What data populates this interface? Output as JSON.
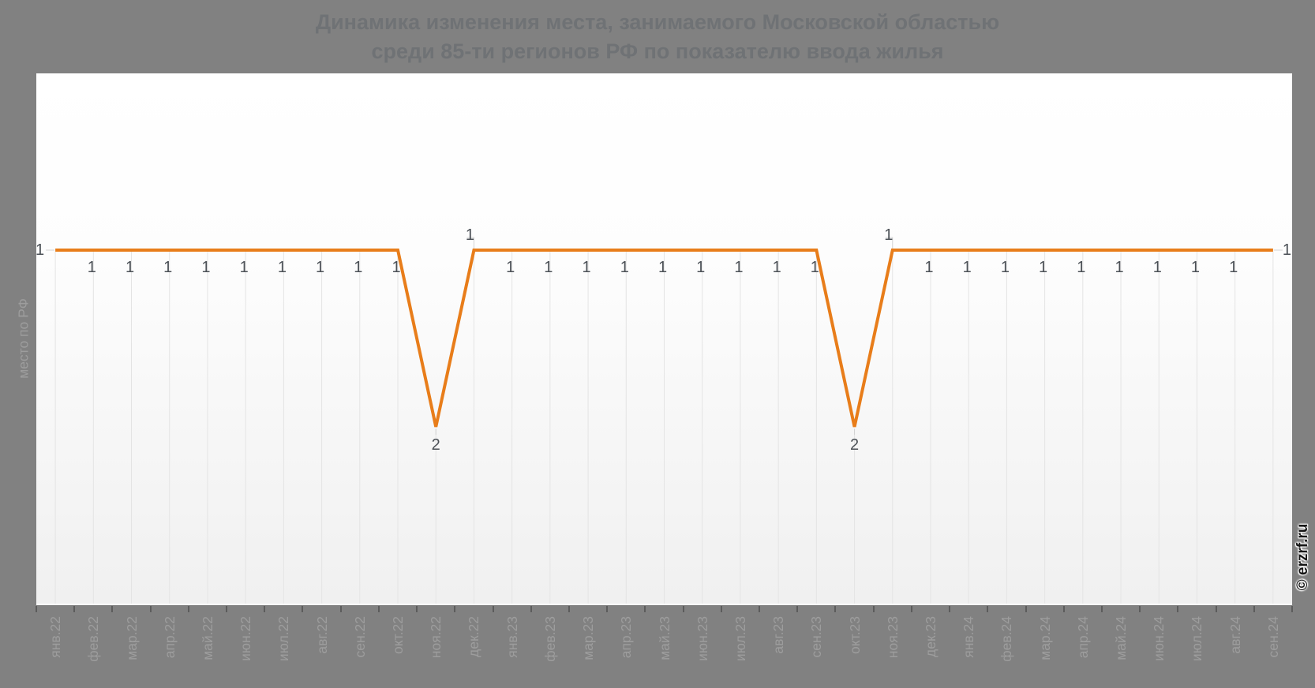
{
  "title": {
    "line1": "Динамика изменения места, занимаемого Московской областью",
    "line2": "среди 85-ти регионов РФ по показателю ввода жилья"
  },
  "watermark": "© erzrf.ru",
  "colors": {
    "page_background": "#818181",
    "series_line": "#e87d1a",
    "data_label_text": "#4b5056",
    "axis_label_text": "#9d9d9d",
    "title_text": "#6f7275",
    "dropline": "#e4e4e4",
    "label_connector": "#d2d2d2",
    "axis_tick": "#5c5c5c",
    "plot_gradient_top": "#ffffff",
    "plot_gradient_bottom": "#f0f0f0"
  },
  "chart_data": {
    "type": "line",
    "title": "Динамика изменения места, занимаемого Московской областью среди 85-ти регионов РФ по показателю ввода жилья",
    "ylabel": "место по РФ",
    "xlabel": "",
    "legend_position": "none",
    "y_axis_inverted": true,
    "ylim": [
      0,
      3
    ],
    "y_tick_labels_visible": false,
    "grid": "vertical droplines from each point to x-axis",
    "data_labels_visible": true,
    "categories": [
      "янв.22",
      "фев.22",
      "мар.22",
      "апр.22",
      "май.22",
      "июн.22",
      "июл.22",
      "авг.22",
      "сен.22",
      "окт.22",
      "ноя.22",
      "дек.22",
      "янв.23",
      "фев.23",
      "мар.23",
      "апр.23",
      "май.23",
      "июн.23",
      "июл.23",
      "авг.23",
      "сен.23",
      "окт.23",
      "ноя.23",
      "дек.23",
      "янв.24",
      "фев.24",
      "мар.24",
      "апр.24",
      "май.24",
      "июн.24",
      "июл.24",
      "авг.24",
      "сен.24"
    ],
    "values": [
      1,
      1,
      1,
      1,
      1,
      1,
      1,
      1,
      1,
      1,
      2,
      1,
      1,
      1,
      1,
      1,
      1,
      1,
      1,
      1,
      1,
      2,
      1,
      1,
      1,
      1,
      1,
      1,
      1,
      1,
      1,
      1,
      1
    ]
  }
}
